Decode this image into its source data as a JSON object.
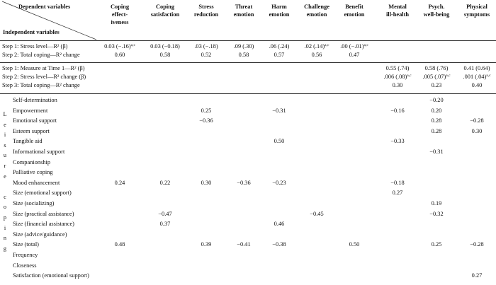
{
  "header": {
    "dependent_label": "Dependent variables",
    "independent_label": "Independent variables",
    "columns": [
      {
        "line1": "Coping",
        "line2": "effect-",
        "line3": "iveness"
      },
      {
        "line1": "Coping",
        "line2": "satisfaction",
        "line3": ""
      },
      {
        "line1": "Stress",
        "line2": "reduction",
        "line3": ""
      },
      {
        "line1": "Threat",
        "line2": "emotion",
        "line3": ""
      },
      {
        "line1": "Harm",
        "line2": "emotion",
        "line3": ""
      },
      {
        "line1": "Challenge",
        "line2": "emotion",
        "line3": ""
      },
      {
        "line1": "Benefit",
        "line2": "emotion",
        "line3": ""
      },
      {
        "line1": "Mental",
        "line2": "ill-health",
        "line3": ""
      },
      {
        "line1": "Psych.",
        "line2": "well-being",
        "line3": ""
      },
      {
        "line1": "Physical",
        "line2": "symptoms",
        "line3": ""
      }
    ]
  },
  "block1": {
    "rows": [
      {
        "label": "Step 1: Stress level—R² (β)",
        "cells": [
          "0.03 (−.16)",
          "0.03 (−0.18)",
          ".03 (−.18)",
          ".09 (.30)",
          ".06 (.24)",
          ".02 (.14)",
          ".00 (−.01)",
          "",
          "",
          ""
        ],
        "sups": [
          "a,c",
          "",
          "",
          "",
          "",
          "a,c",
          "a,c",
          "",
          "",
          ""
        ]
      },
      {
        "label": "Step 2: Total coping—R² change",
        "cells": [
          "0.60",
          "0.58",
          "0.52",
          "0.58",
          "0.57",
          "0.56",
          "0.47",
          "",
          "",
          ""
        ],
        "sups": [
          "",
          "",
          "",
          "",
          "",
          "",
          "",
          "",
          "",
          ""
        ]
      }
    ]
  },
  "block2": {
    "rows": [
      {
        "label": "Step 1: Measure at Time 1—R² (β)",
        "cells": [
          "",
          "",
          "",
          "",
          "",
          "",
          "",
          "0.55 (.74)",
          "0.58 (.76)",
          "0.41 (0.64)"
        ],
        "sups": [
          "",
          "",
          "",
          "",
          "",
          "",
          "",
          "",
          "",
          ""
        ]
      },
      {
        "label": "Step 2: Stress level—R² change (β)",
        "cells": [
          "",
          "",
          "",
          "",
          "",
          "",
          "",
          ".006 (.08)",
          ".005 (.07)",
          ".001 (.04)"
        ],
        "sups": [
          "",
          "",
          "",
          "",
          "",
          "",
          "",
          "a,c",
          "a,c",
          "a,c"
        ]
      },
      {
        "label": "Step 3: Total coping—R² change",
        "cells": [
          "",
          "",
          "",
          "",
          "",
          "",
          "",
          "0.30",
          "0.23",
          "0.40"
        ],
        "sups": [
          "",
          "",
          "",
          "",
          "",
          "",
          "",
          "",
          "",
          ""
        ]
      }
    ]
  },
  "leisure_coping_label": [
    "L",
    "e",
    "i",
    "s",
    "u",
    "r",
    "e",
    "",
    "c",
    "o",
    "p",
    "i",
    "n",
    "g"
  ],
  "block3": {
    "rows": [
      {
        "label": "Self-determination",
        "cells": [
          "",
          "",
          "",
          "",
          "",
          "",
          "",
          "",
          "−0.20",
          ""
        ]
      },
      {
        "label": "Empowerment",
        "cells": [
          "",
          "",
          "0.25",
          "",
          "−0.31",
          "",
          "",
          "−0.16",
          "0.20",
          ""
        ]
      },
      {
        "label": "Emotional support",
        "cells": [
          "",
          "",
          "−0.36",
          "",
          "",
          "",
          "",
          "",
          "0.28",
          "−0.28"
        ]
      },
      {
        "label": "Esteem support",
        "cells": [
          "",
          "",
          "",
          "",
          "",
          "",
          "",
          "",
          "0.28",
          "0.30"
        ]
      },
      {
        "label": "Tangible aid",
        "cells": [
          "",
          "",
          "",
          "",
          "0.50",
          "",
          "",
          "−0.33",
          "",
          ""
        ]
      },
      {
        "label": "Informational support",
        "cells": [
          "",
          "",
          "",
          "",
          "",
          "",
          "",
          "",
          "−0.31",
          ""
        ]
      },
      {
        "label": "Companionship",
        "cells": [
          "",
          "",
          "",
          "",
          "",
          "",
          "",
          "",
          "",
          ""
        ]
      },
      {
        "label": "Palliative coping",
        "cells": [
          "",
          "",
          "",
          "",
          "",
          "",
          "",
          "",
          "",
          ""
        ]
      },
      {
        "label": "Mood enhancement",
        "cells": [
          "0.24",
          "0.22",
          "0.30",
          "−0.36",
          "−0.23",
          "",
          "",
          "−0.18",
          "",
          ""
        ]
      },
      {
        "label": "Size (emotional support)",
        "cells": [
          "",
          "",
          "",
          "",
          "",
          "",
          "",
          "0.27",
          "",
          ""
        ]
      },
      {
        "label": "Size (socializing)",
        "cells": [
          "",
          "",
          "",
          "",
          "",
          "",
          "",
          "",
          "0.19",
          ""
        ]
      },
      {
        "label": "Size (practical assistance)",
        "cells": [
          "",
          "−0.47",
          "",
          "",
          "",
          "−0.45",
          "",
          "",
          "−0.32",
          ""
        ]
      },
      {
        "label": "Size (financial assistance)",
        "cells": [
          "",
          "0.37",
          "",
          "",
          "0.46",
          "",
          "",
          "",
          "",
          ""
        ]
      },
      {
        "label": "Size (advice/guidance)",
        "cells": [
          "",
          "",
          "",
          "",
          "",
          "",
          "",
          "",
          "",
          ""
        ]
      },
      {
        "label": "Size (total)",
        "cells": [
          "0.48",
          "",
          "0.39",
          "−0.41",
          "−0.38",
          "",
          "0.50",
          "",
          "0.25",
          "−0.28"
        ]
      },
      {
        "label": "Frequency",
        "cells": [
          "",
          "",
          "",
          "",
          "",
          "",
          "",
          "",
          "",
          ""
        ]
      },
      {
        "label": "Closeness",
        "cells": [
          "",
          "",
          "",
          "",
          "",
          "",
          "",
          "",
          "",
          ""
        ]
      },
      {
        "label": "Satisfaction (emotional support)",
        "cells": [
          "",
          "",
          "",
          "",
          "",
          "",
          "",
          "",
          "",
          "0.27"
        ]
      }
    ]
  }
}
